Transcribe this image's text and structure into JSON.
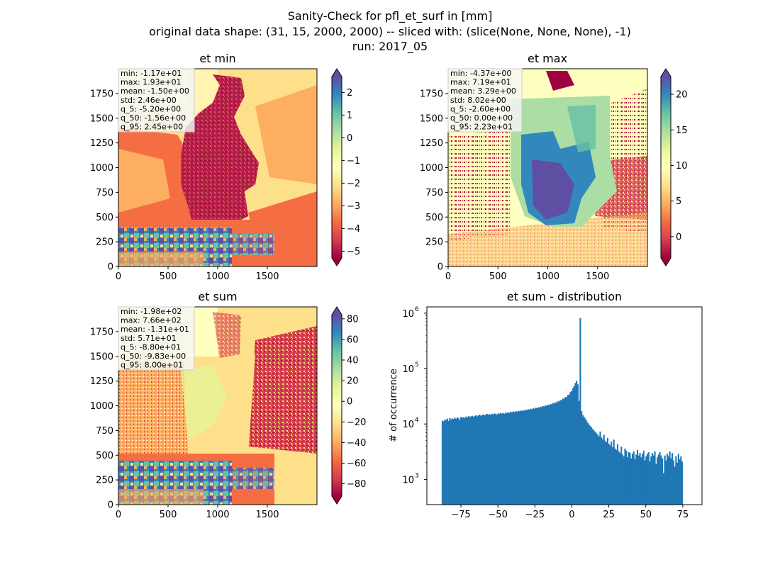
{
  "figure": {
    "title_lines": [
      "Sanity-Check for pfl_et_surf in [mm]",
      "original data shape: (31, 15, 2000, 2000) -- sliced with: (slice(None, None, None), -1)",
      "run: 2017_05"
    ]
  },
  "chart_data": [
    {
      "type": "heatmap",
      "title": "et min",
      "xlim": [
        0,
        2000
      ],
      "ylim": [
        0,
        2000
      ],
      "x_ticks": [
        "0",
        "500",
        "1000",
        "1500"
      ],
      "y_ticks": [
        "0",
        "250",
        "500",
        "750",
        "1000",
        "1250",
        "1500",
        "1750"
      ],
      "colormap": "Spectral",
      "colorbar": {
        "range": [
          -5.3,
          2.7
        ],
        "ticks": [
          "2",
          "1",
          "0",
          "−1",
          "−2",
          "−3",
          "−4",
          "−5"
        ],
        "extend": "both"
      },
      "stats": [
        "min: -1.17e+01",
        "max: 1.93e+01",
        "mean: -1.50e+00",
        "std: 2.46e+00",
        "q_5: -5.20e+00",
        "q_50: -1.56e+00",
        "q_95: 2.45e+00"
      ]
    },
    {
      "type": "heatmap",
      "title": "et max",
      "xlim": [
        0,
        2000
      ],
      "ylim": [
        0,
        2000
      ],
      "x_ticks": [
        "0",
        "500",
        "1000",
        "1500"
      ],
      "y_ticks": [
        "0",
        "250",
        "500",
        "750",
        "1000",
        "1250",
        "1500",
        "1750"
      ],
      "colormap": "Spectral",
      "colorbar": {
        "range": [
          -3.0,
          22.5
        ],
        "ticks": [
          "20",
          "15",
          "10",
          "5",
          "0"
        ],
        "extend": "both"
      },
      "stats": [
        "min: -4.37e+00",
        "max: 7.19e+01",
        "mean: 3.29e+00",
        "std: 8.02e+00",
        "q_5: -2.60e+00",
        "q_50: 0.00e+00",
        "q_95: 2.23e+01"
      ]
    },
    {
      "type": "heatmap",
      "title": "et sum",
      "xlim": [
        0,
        2000
      ],
      "ylim": [
        0,
        2000
      ],
      "x_ticks": [
        "0",
        "500",
        "1000",
        "1500"
      ],
      "y_ticks": [
        "0",
        "250",
        "500",
        "750",
        "1000",
        "1250",
        "1500",
        "1750"
      ],
      "colormap": "Spectral",
      "colorbar": {
        "range": [
          -92,
          84
        ],
        "ticks": [
          "80",
          "60",
          "40",
          "20",
          "0",
          "−20",
          "−40",
          "−60",
          "−80"
        ],
        "extend": "both"
      },
      "stats": [
        "min: -1.98e+02",
        "max: 7.66e+02",
        "mean: -1.31e+01",
        "std: 5.71e+01",
        "q_5: -8.80e+01",
        "q_50: -9.83e+00",
        "q_95: 8.00e+01"
      ]
    },
    {
      "type": "bar",
      "title": "et sum - distribution",
      "xlabel": "",
      "ylabel": "# of occurrence",
      "y_scale": "log",
      "xlim": [
        -98,
        88
      ],
      "ylim": [
        350,
        1300000
      ],
      "x_ticks": [
        "−75",
        "−50",
        "−25",
        "0",
        "25",
        "50",
        "75"
      ],
      "y_ticks": [
        {
          "base": "10",
          "exp": "3"
        },
        {
          "base": "10",
          "exp": "4"
        },
        {
          "base": "10",
          "exp": "5"
        },
        {
          "base": "10",
          "exp": "6"
        }
      ],
      "bar_color": "#1f77b4",
      "bins": {
        "start": -88,
        "step": 0.84
      },
      "values": [
        11500,
        11200,
        12000,
        11800,
        12500,
        11400,
        12800,
        12100,
        12600,
        12300,
        13000,
        12400,
        13200,
        12700,
        11900,
        13500,
        12900,
        13300,
        12800,
        13600,
        13100,
        13900,
        13300,
        13700,
        14100,
        13500,
        14000,
        14400,
        13800,
        14300,
        14700,
        14100,
        14500,
        14900,
        14300,
        14800,
        15200,
        14600,
        15100,
        14500,
        15300,
        14900,
        15500,
        15100,
        14800,
        15600,
        15200,
        15900,
        15400,
        15800,
        15300,
        16100,
        15700,
        16300,
        15900,
        16600,
        16200,
        16800,
        16400,
        17000,
        16600,
        17300,
        16900,
        17500,
        17100,
        17800,
        17400,
        18100,
        17700,
        18500,
        18100,
        18800,
        18400,
        19200,
        18800,
        19600,
        19200,
        20100,
        19700,
        20600,
        20200,
        21100,
        20700,
        21700,
        21300,
        22300,
        21900,
        23000,
        22600,
        23800,
        23400,
        24700,
        24300,
        25800,
        25400,
        27100,
        26800,
        28700,
        28500,
        30800,
        30600,
        33500,
        33800,
        37500,
        39000,
        44000,
        48000,
        55000,
        60000,
        52000,
        26000,
        820000,
        17000,
        14500,
        13500,
        12500,
        11500,
        10500,
        9800,
        9200,
        8700,
        8100,
        7600,
        7200,
        6800,
        6400,
        6000,
        7300,
        5700,
        5300,
        6400,
        5000,
        4700,
        5600,
        4400,
        4100,
        4800,
        3800,
        5200,
        3600,
        3400,
        4300,
        3200,
        3000,
        3900,
        2800,
        2600,
        3600,
        3300,
        2500,
        3100,
        3000,
        2400,
        2900,
        3200,
        2300,
        2800,
        3400,
        2700,
        3000,
        2500,
        2900,
        3300,
        2200,
        2600,
        2900,
        3100,
        2100,
        2600,
        3000,
        2700,
        3200,
        1900,
        2500,
        2800,
        3100,
        2700,
        2400,
        1300,
        2700,
        2200,
        2900,
        2600,
        3200,
        2400,
        3000,
        2200,
        1700,
        2600,
        2000,
        2900,
        2300,
        2600,
        2100
      ]
    }
  ]
}
